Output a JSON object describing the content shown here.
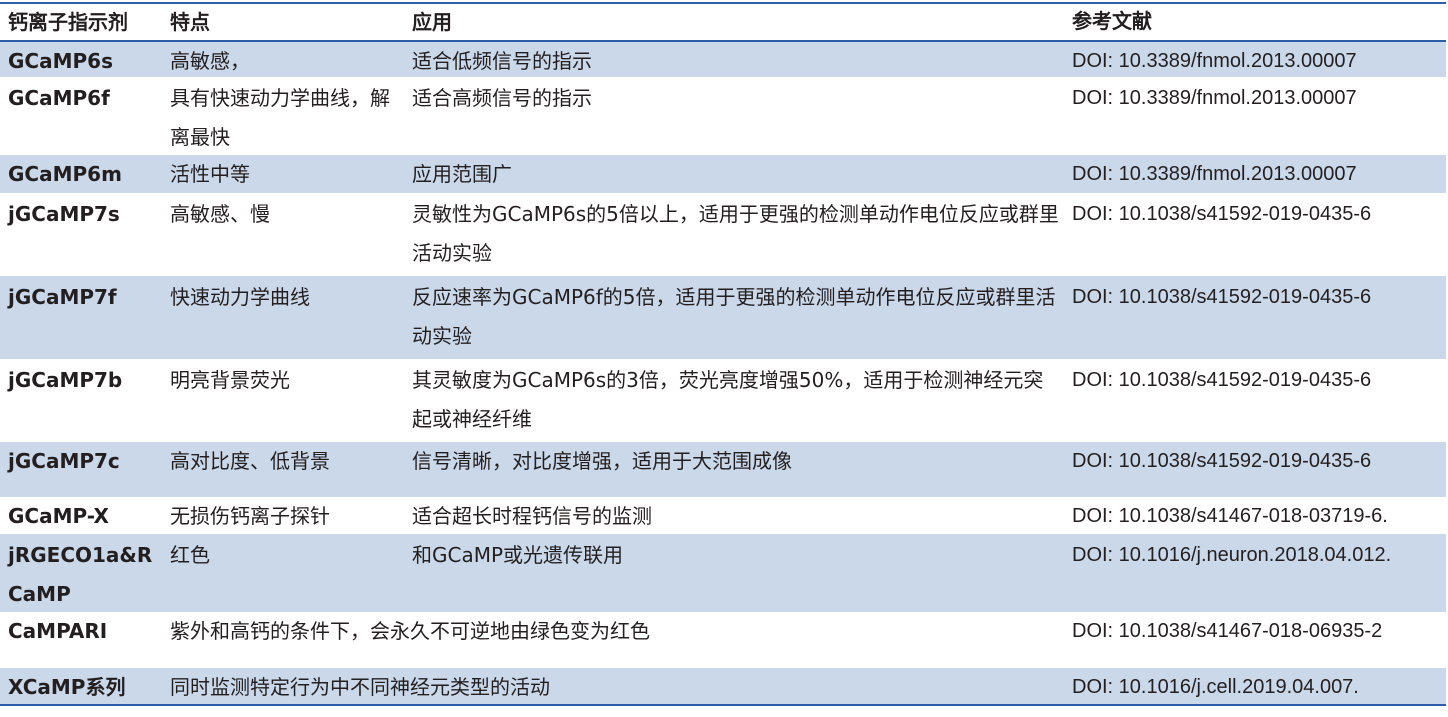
{
  "header": [
    "钙离子指示剂",
    "特点",
    "应用",
    "参考文献"
  ],
  "rows": [
    {
      "name": "GCaMP6s",
      "feature": "高敏感，",
      "application": "适合低频信号的指示",
      "reference": "DOI: 10.3389/fnmol.2013.00007"
    },
    {
      "name": "GCaMP6f",
      "feature": "具有快速动力学曲线，解离最快",
      "application": "适合高频信号的指示",
      "reference": "DOI: 10.3389/fnmol.2013.00007"
    },
    {
      "name": "GCaMP6m",
      "feature": "活性中等",
      "application": "应用范围广",
      "reference": "DOI: 10.3389/fnmol.2013.00007"
    },
    {
      "name": "jGCaMP7s",
      "feature": "高敏感、慢",
      "application": "灵敏性为GCaMP6s的5倍以上，适用于更强的检测单动作电位反应或群里活动实验",
      "reference": "DOI: 10.1038/s41592-019-0435-6"
    },
    {
      "name": "jGCaMP7f",
      "feature": "快速动力学曲线",
      "application": "反应速率为GCaMP6f的5倍，适用于更强的检测单动作电位反应或群里活动实验",
      "reference": "DOI: 10.1038/s41592-019-0435-6"
    },
    {
      "name": "jGCaMP7b",
      "feature": "明亮背景荧光",
      "application": "其灵敏度为GCaMP6s的3倍，荧光亮度增强50%，适用于检测神经元突起或神经纤维",
      "reference": "DOI: 10.1038/s41592-019-0435-6"
    },
    {
      "name": "jGCaMP7c",
      "feature": "高对比度、低背景",
      "application": "信号清晰，对比度增强，适用于大范围成像",
      "reference": "DOI: 10.1038/s41592-019-0435-6"
    },
    {
      "name": "GCaMP-X",
      "feature": "无损伤钙离子探针",
      "application": "适合超长时程钙信号的监测",
      "reference": "DOI: 10.1038/s41467-018-03719-6."
    },
    {
      "name": "jRGECO1a&RCaMP",
      "feature": "红色",
      "application": "和GCaMP或光遗传联用",
      "reference": "DOI: 10.1016/j.neuron.2018.04.012."
    },
    {
      "name": "CaMPARI",
      "feature": "紫外和高钙的条件下，会永久不可逆地由绿色变为红色",
      "application": "",
      "reference": "DOI: 10.1038/s41467-018-06935-2"
    },
    {
      "name": "XCaMP系列",
      "feature": "同时监测特定行为中不同神经元类型的活动",
      "application": "",
      "reference": "DOI: 10.1016/j.cell.2019.04.007."
    }
  ],
  "colors": {
    "row_alt": "#cad8ea",
    "rule": "#2b5ea7",
    "text": "#231f20"
  }
}
